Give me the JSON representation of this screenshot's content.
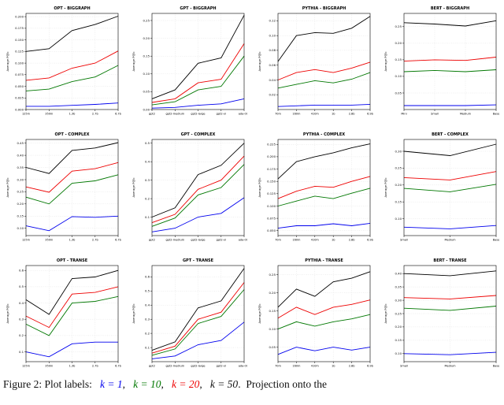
{
  "palette": {
    "k = 1": "#0000ee",
    "k = 10": "#007700",
    "k = 20": "#ee0000",
    "k = 50": "#000000"
  },
  "ylabel": "Average P@k",
  "caption": {
    "parts": [
      {
        "text": "Figure 2: Plot labels:   ",
        "color": "#111111",
        "italic": false
      },
      {
        "text": "k = 1",
        "color": "#0000ee",
        "italic": true
      },
      {
        "text": ",   ",
        "color": "#111111",
        "italic": false
      },
      {
        "text": "k = 10",
        "color": "#007700",
        "italic": true
      },
      {
        "text": ",   ",
        "color": "#111111",
        "italic": false
      },
      {
        "text": "k = 20",
        "color": "#ee0000",
        "italic": true
      },
      {
        "text": ",   ",
        "color": "#111111",
        "italic": false
      },
      {
        "text": "k = 50",
        "color": "#111111",
        "italic": true
      },
      {
        "text": ".  Projection onto the",
        "color": "#111111",
        "italic": false
      }
    ]
  },
  "chart_data": [
    {
      "type": "line",
      "title": "OPT - BIGGRAPH",
      "ylabel": "Average P@k",
      "categories": [
        "125m",
        "350m",
        "1.3b",
        "2.7b",
        "6.7b"
      ],
      "ylim": [
        0,
        0.207
      ],
      "yticks": [
        0.0,
        0.025,
        0.05,
        0.075,
        0.1,
        0.125,
        0.15,
        0.175,
        0.2
      ],
      "ytick_labels": [
        "0.000",
        "0.025",
        "0.050",
        "0.075",
        "0.100",
        "0.125",
        "0.150",
        "0.175",
        "0.200"
      ],
      "series": [
        {
          "name": "k = 1",
          "values": [
            0.007,
            0.007,
            0.009,
            0.011,
            0.014
          ]
        },
        {
          "name": "k = 10",
          "values": [
            0.04,
            0.044,
            0.06,
            0.07,
            0.095
          ]
        },
        {
          "name": "k = 20",
          "values": [
            0.063,
            0.068,
            0.089,
            0.1,
            0.126
          ]
        },
        {
          "name": "k = 50",
          "values": [
            0.125,
            0.131,
            0.17,
            0.183,
            0.201
          ]
        }
      ]
    },
    {
      "type": "line",
      "title": "GPT - BIGGRAPH",
      "ylabel": "Average P@k",
      "categories": [
        "gpt2",
        "gpt2-medium",
        "gpt2-large",
        "gpt2-xl",
        "ada-002"
      ],
      "ylim": [
        0,
        0.27
      ],
      "yticks": [
        0.0,
        0.05,
        0.1,
        0.15,
        0.2,
        0.25
      ],
      "ytick_labels": [
        "0.00",
        "0.05",
        "0.10",
        "0.15",
        "0.20",
        "0.25"
      ],
      "series": [
        {
          "name": "k = 1",
          "values": [
            0.004,
            0.006,
            0.012,
            0.016,
            0.03
          ]
        },
        {
          "name": "k = 10",
          "values": [
            0.013,
            0.022,
            0.055,
            0.065,
            0.15
          ]
        },
        {
          "name": "k = 20",
          "values": [
            0.02,
            0.03,
            0.075,
            0.085,
            0.185
          ]
        },
        {
          "name": "k = 50",
          "values": [
            0.03,
            0.055,
            0.13,
            0.145,
            0.265
          ]
        }
      ]
    },
    {
      "type": "line",
      "title": "PYTHIA - BIGGRAPH",
      "ylabel": "Average P@k",
      "categories": [
        "70m",
        "160m",
        "410m",
        "1b",
        "2.8b",
        "6.9b"
      ],
      "ylim": [
        0,
        0.13
      ],
      "yticks": [
        0.02,
        0.04,
        0.06,
        0.08,
        0.1,
        0.12
      ],
      "ytick_labels": [
        "0.02",
        "0.04",
        "0.06",
        "0.08",
        "0.10",
        "0.12"
      ],
      "series": [
        {
          "name": "k = 1",
          "values": [
            0.004,
            0.005,
            0.006,
            0.006,
            0.006,
            0.007
          ]
        },
        {
          "name": "k = 10",
          "values": [
            0.029,
            0.034,
            0.039,
            0.036,
            0.041,
            0.05
          ]
        },
        {
          "name": "k = 20",
          "values": [
            0.04,
            0.05,
            0.054,
            0.05,
            0.056,
            0.064
          ]
        },
        {
          "name": "k = 50",
          "values": [
            0.065,
            0.1,
            0.104,
            0.103,
            0.11,
            0.126
          ]
        }
      ]
    },
    {
      "type": "line",
      "title": "BERT - BIGGRAPH",
      "ylabel": "Average P@k",
      "categories": [
        "Mini",
        "Small",
        "Medium",
        "Base"
      ],
      "ylim": [
        0,
        0.29
      ],
      "yticks": [
        0.05,
        0.1,
        0.15,
        0.2,
        0.25
      ],
      "ytick_labels": [
        "0.05",
        "0.10",
        "0.15",
        "0.20",
        "0.25"
      ],
      "series": [
        {
          "name": "k = 1",
          "values": [
            0.012,
            0.012,
            0.012,
            0.014
          ]
        },
        {
          "name": "k = 10",
          "values": [
            0.114,
            0.118,
            0.114,
            0.12
          ]
        },
        {
          "name": "k = 20",
          "values": [
            0.146,
            0.15,
            0.148,
            0.158
          ]
        },
        {
          "name": "k = 50",
          "values": [
            0.262,
            0.258,
            0.252,
            0.268
          ]
        }
      ]
    },
    {
      "type": "line",
      "title": "OPT - COMPLEX",
      "ylabel": "Average P@k",
      "categories": [
        "125m",
        "350m",
        "1.3b",
        "2.7b",
        "6.7b"
      ],
      "ylim": [
        0.07,
        0.465
      ],
      "yticks": [
        0.1,
        0.15,
        0.2,
        0.25,
        0.3,
        0.35,
        0.4,
        0.45
      ],
      "ytick_labels": [
        "0.10",
        "0.15",
        "0.20",
        "0.25",
        "0.30",
        "0.35",
        "0.40",
        "0.45"
      ],
      "series": [
        {
          "name": "k = 1",
          "values": [
            0.11,
            0.09,
            0.148,
            0.145,
            0.15
          ]
        },
        {
          "name": "k = 10",
          "values": [
            0.228,
            0.2,
            0.285,
            0.295,
            0.32
          ]
        },
        {
          "name": "k = 20",
          "values": [
            0.27,
            0.248,
            0.335,
            0.345,
            0.37
          ]
        },
        {
          "name": "k = 50",
          "values": [
            0.35,
            0.325,
            0.42,
            0.43,
            0.452
          ]
        }
      ]
    },
    {
      "type": "line",
      "title": "GPT - COMPLEX",
      "ylabel": "Average P@k",
      "categories": [
        "gpt2",
        "gpt2-medium",
        "gpt2-large",
        "gpt2-xl",
        "ada-002"
      ],
      "ylim": [
        0,
        0.52
      ],
      "yticks": [
        0.1,
        0.2,
        0.3,
        0.4,
        0.5
      ],
      "ytick_labels": [
        "0.1",
        "0.2",
        "0.3",
        "0.4",
        "0.5"
      ],
      "series": [
        {
          "name": "k = 1",
          "values": [
            0.02,
            0.04,
            0.1,
            0.12,
            0.205
          ]
        },
        {
          "name": "k = 10",
          "values": [
            0.05,
            0.095,
            0.22,
            0.26,
            0.385
          ]
        },
        {
          "name": "k = 20",
          "values": [
            0.07,
            0.115,
            0.25,
            0.3,
            0.43
          ]
        },
        {
          "name": "k = 50",
          "values": [
            0.1,
            0.15,
            0.33,
            0.38,
            0.5
          ]
        }
      ]
    },
    {
      "type": "line",
      "title": "PYTHIA - COMPLEX",
      "ylabel": "Average P@k",
      "categories": [
        "70m",
        "160m",
        "410m",
        "1b",
        "2.8b",
        "6.9b"
      ],
      "ylim": [
        0.04,
        0.235
      ],
      "yticks": [
        0.05,
        0.075,
        0.1,
        0.125,
        0.15,
        0.175,
        0.2,
        0.225
      ],
      "ytick_labels": [
        "0.050",
        "0.075",
        "0.100",
        "0.125",
        "0.150",
        "0.175",
        "0.200",
        "0.225"
      ],
      "series": [
        {
          "name": "k = 1",
          "values": [
            0.055,
            0.06,
            0.06,
            0.064,
            0.06,
            0.065
          ]
        },
        {
          "name": "k = 10",
          "values": [
            0.1,
            0.11,
            0.12,
            0.115,
            0.126,
            0.136
          ]
        },
        {
          "name": "k = 20",
          "values": [
            0.115,
            0.13,
            0.14,
            0.138,
            0.15,
            0.16
          ]
        },
        {
          "name": "k = 50",
          "values": [
            0.155,
            0.19,
            0.2,
            0.208,
            0.218,
            0.226
          ]
        }
      ]
    },
    {
      "type": "line",
      "title": "BERT - COMPLEX",
      "ylabel": "Average P@k",
      "categories": [
        "Small",
        "Medium",
        "Base"
      ],
      "ylim": [
        0.05,
        0.335
      ],
      "yticks": [
        0.1,
        0.15,
        0.2,
        0.25,
        0.3
      ],
      "ytick_labels": [
        "0.10",
        "0.15",
        "0.20",
        "0.25",
        "0.30"
      ],
      "series": [
        {
          "name": "k = 1",
          "values": [
            0.075,
            0.07,
            0.08
          ]
        },
        {
          "name": "k = 10",
          "values": [
            0.19,
            0.18,
            0.202
          ]
        },
        {
          "name": "k = 20",
          "values": [
            0.222,
            0.215,
            0.24
          ]
        },
        {
          "name": "k = 50",
          "values": [
            0.3,
            0.287,
            0.321
          ]
        }
      ]
    },
    {
      "type": "line",
      "title": "OPT - TRANSE",
      "ylabel": "Average P@k",
      "categories": [
        "125m",
        "350m",
        "1.3b",
        "2.7b",
        "6.7b"
      ],
      "ylim": [
        0.04,
        0.63
      ],
      "yticks": [
        0.1,
        0.2,
        0.3,
        0.4,
        0.5,
        0.6
      ],
      "ytick_labels": [
        "0.1",
        "0.2",
        "0.3",
        "0.4",
        "0.5",
        "0.6"
      ],
      "series": [
        {
          "name": "k = 1",
          "values": [
            0.1,
            0.07,
            0.15,
            0.16,
            0.16
          ]
        },
        {
          "name": "k = 10",
          "values": [
            0.27,
            0.2,
            0.4,
            0.41,
            0.44
          ]
        },
        {
          "name": "k = 20",
          "values": [
            0.32,
            0.25,
            0.455,
            0.465,
            0.5
          ]
        },
        {
          "name": "k = 50",
          "values": [
            0.42,
            0.33,
            0.55,
            0.56,
            0.6
          ]
        }
      ]
    },
    {
      "type": "line",
      "title": "GPT - TRANSE",
      "ylabel": "Average P@k",
      "categories": [
        "gpt2",
        "gpt2-medium",
        "gpt2-large",
        "gpt2-xl",
        "ada-002"
      ],
      "ylim": [
        0,
        0.68
      ],
      "yticks": [
        0.1,
        0.2,
        0.3,
        0.4,
        0.5,
        0.6
      ],
      "ytick_labels": [
        "0.1",
        "0.2",
        "0.3",
        "0.4",
        "0.5",
        "0.6"
      ],
      "series": [
        {
          "name": "k = 1",
          "values": [
            0.02,
            0.04,
            0.12,
            0.15,
            0.28
          ]
        },
        {
          "name": "k = 10",
          "values": [
            0.045,
            0.09,
            0.27,
            0.32,
            0.51
          ]
        },
        {
          "name": "k = 20",
          "values": [
            0.06,
            0.11,
            0.3,
            0.35,
            0.56
          ]
        },
        {
          "name": "k = 50",
          "values": [
            0.08,
            0.14,
            0.38,
            0.43,
            0.66
          ]
        }
      ]
    },
    {
      "type": "line",
      "title": "PYTHIA - TRANSE",
      "ylabel": "Average P@k",
      "categories": [
        "70m",
        "160m",
        "410m",
        "1b",
        "2.8b",
        "6.9b"
      ],
      "ylim": [
        0.01,
        0.275
      ],
      "yticks": [
        0.05,
        0.1,
        0.15,
        0.2,
        0.25
      ],
      "ytick_labels": [
        "0.05",
        "0.10",
        "0.15",
        "0.20",
        "0.25"
      ],
      "series": [
        {
          "name": "k = 1",
          "values": [
            0.03,
            0.05,
            0.04,
            0.05,
            0.042,
            0.05
          ]
        },
        {
          "name": "k = 10",
          "values": [
            0.1,
            0.12,
            0.108,
            0.12,
            0.128,
            0.14
          ]
        },
        {
          "name": "k = 20",
          "values": [
            0.13,
            0.16,
            0.14,
            0.16,
            0.168,
            0.18
          ]
        },
        {
          "name": "k = 50",
          "values": [
            0.16,
            0.21,
            0.19,
            0.23,
            0.24,
            0.258
          ]
        }
      ]
    },
    {
      "type": "line",
      "title": "BERT - TRANSE",
      "ylabel": "Average P@k",
      "categories": [
        "Small",
        "Medium",
        "Base"
      ],
      "ylim": [
        0.07,
        0.43
      ],
      "yticks": [
        0.1,
        0.15,
        0.2,
        0.25,
        0.3,
        0.35,
        0.4
      ],
      "ytick_labels": [
        "0.10",
        "0.15",
        "0.20",
        "0.25",
        "0.30",
        "0.35",
        "0.40"
      ],
      "series": [
        {
          "name": "k = 1",
          "values": [
            0.1,
            0.096,
            0.105
          ]
        },
        {
          "name": "k = 10",
          "values": [
            0.27,
            0.262,
            0.278
          ]
        },
        {
          "name": "k = 20",
          "values": [
            0.31,
            0.305,
            0.318
          ]
        },
        {
          "name": "k = 50",
          "values": [
            0.4,
            0.392,
            0.41
          ]
        }
      ]
    }
  ]
}
